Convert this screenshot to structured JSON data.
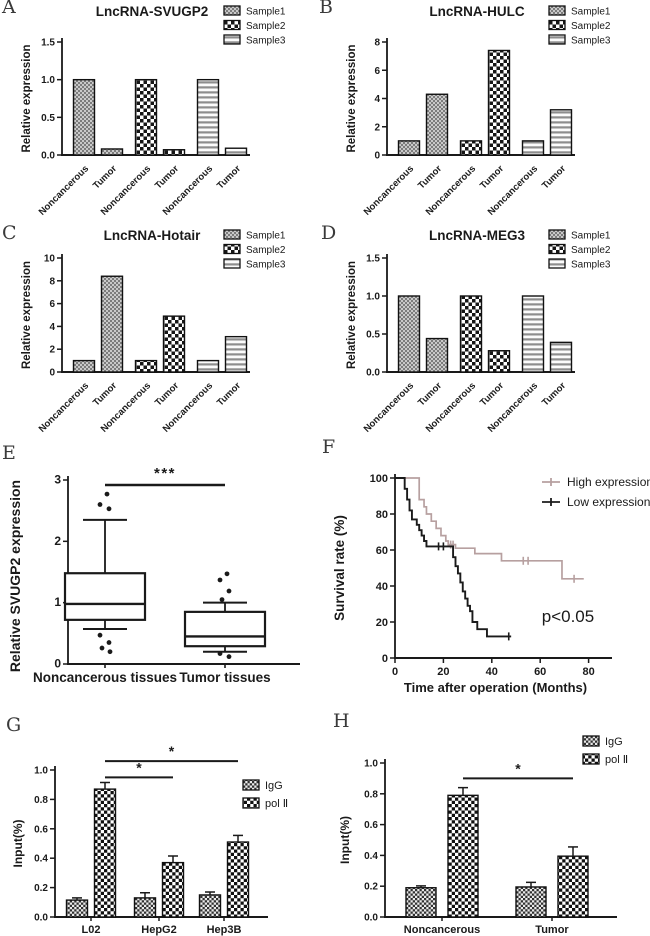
{
  "figure": {
    "background": "#ffffff",
    "text_color": "#1a1a1a"
  },
  "chart_data": [
    {
      "panel": "A",
      "type": "bar",
      "title": "LncRNA-SVUGP2",
      "ylabel": "Relative expression",
      "ymax": 1.5,
      "yticks": [
        0,
        0.5,
        1.0,
        1.5
      ],
      "tick_decimals": 1,
      "pair_labels": [
        "Noncancerous",
        "Tumor"
      ],
      "series": [
        {
          "name": "Sample1",
          "pattern": "sample1",
          "values": [
            1.0,
            0.08
          ]
        },
        {
          "name": "Sample2",
          "pattern": "sample2",
          "values": [
            1.0,
            0.07
          ]
        },
        {
          "name": "Sample3",
          "pattern": "sample3",
          "values": [
            1.0,
            0.09
          ]
        }
      ]
    },
    {
      "panel": "B",
      "type": "bar",
      "title": "LncRNA-HULC",
      "ylabel": "Relative expression",
      "ymax": 8,
      "yticks": [
        0,
        2,
        4,
        6,
        8
      ],
      "tick_decimals": 0,
      "pair_labels": [
        "Noncancerous",
        "Tumor"
      ],
      "series": [
        {
          "name": "Sample1",
          "pattern": "sample1",
          "values": [
            1.0,
            4.3
          ]
        },
        {
          "name": "Sample2",
          "pattern": "sample2",
          "values": [
            1.0,
            7.4
          ]
        },
        {
          "name": "Sample3",
          "pattern": "sample3",
          "values": [
            1.0,
            3.2
          ]
        }
      ]
    },
    {
      "panel": "C",
      "type": "bar",
      "title": "LncRNA-Hotair",
      "ylabel": "Relative expression",
      "ymax": 10,
      "yticks": [
        0,
        2,
        4,
        6,
        8,
        10
      ],
      "tick_decimals": 0,
      "pair_labels": [
        "Noncancerous",
        "Tumor"
      ],
      "series": [
        {
          "name": "Sample1",
          "pattern": "sample1",
          "values": [
            1.0,
            8.4
          ]
        },
        {
          "name": "Sample2",
          "pattern": "sample2",
          "values": [
            1.0,
            4.9
          ]
        },
        {
          "name": "Sample3",
          "pattern": "sample3",
          "values": [
            1.0,
            3.1
          ]
        }
      ]
    },
    {
      "panel": "D",
      "type": "bar",
      "title": "LncRNA-MEG3",
      "ylabel": "Relative expression",
      "ymax": 1.5,
      "yticks": [
        0,
        0.5,
        1.0,
        1.5
      ],
      "tick_decimals": 1,
      "pair_labels": [
        "Noncancerous",
        "Tumor"
      ],
      "series": [
        {
          "name": "Sample1",
          "pattern": "sample1",
          "values": [
            1.0,
            0.44
          ]
        },
        {
          "name": "Sample2",
          "pattern": "sample2",
          "values": [
            1.0,
            0.28
          ]
        },
        {
          "name": "Sample3",
          "pattern": "sample3",
          "values": [
            1.0,
            0.39
          ]
        }
      ]
    },
    {
      "panel": "E",
      "type": "box",
      "ylabel": "Relative SVUGP2 expression",
      "ymax": 3,
      "yticks": [
        0,
        1,
        2,
        3
      ],
      "significance": "***",
      "categories": [
        "Noncancerous tissues",
        "Tumor tissues"
      ],
      "boxes": [
        {
          "q1": 0.72,
          "median": 0.98,
          "q3": 1.48,
          "whisker_low": 0.57,
          "whisker_high": 2.35,
          "outliers_above": [
            2.77,
            2.6,
            2.53
          ],
          "outliers_below": [
            0.47,
            0.35,
            0.26,
            0.2
          ]
        },
        {
          "q1": 0.29,
          "median": 0.45,
          "q3": 0.85,
          "whisker_low": 0.2,
          "whisker_high": 1.0,
          "outliers_above": [
            1.47,
            1.37,
            1.19,
            1.05
          ],
          "outliers_below": [
            0.17,
            0.12
          ]
        }
      ]
    },
    {
      "panel": "F",
      "type": "line",
      "ylabel": "Survival rate (%)",
      "xlabel": "Time after operation (Months)",
      "yticks": [
        0,
        20,
        40,
        60,
        80,
        100
      ],
      "xticks": [
        0,
        20,
        40,
        60,
        80
      ],
      "annotation": "p<0.05",
      "series": [
        {
          "name": "High expression",
          "color": "#b7a0a0",
          "start": 100,
          "end_x": 78,
          "drops": [
            [
              10,
              88
            ],
            [
              12,
              84
            ],
            [
              13,
              80
            ],
            [
              15,
              76
            ],
            [
              17,
              72
            ],
            [
              19,
              68
            ],
            [
              21,
              65
            ],
            [
              22,
              63
            ],
            [
              25,
              61
            ],
            [
              33,
              58
            ],
            [
              44,
              54
            ],
            [
              69,
              44
            ]
          ],
          "censors": [
            [
              23,
              63
            ],
            [
              24,
              63
            ],
            [
              53,
              54
            ],
            [
              55,
              54
            ],
            [
              74,
              44
            ]
          ]
        },
        {
          "name": "Low expression",
          "color": "#1b1b1b",
          "start": 100,
          "end_x": 48,
          "drops": [
            [
              4,
              94
            ],
            [
              5,
              88
            ],
            [
              6,
              82
            ],
            [
              7,
              77
            ],
            [
              9,
              74
            ],
            [
              10,
              71
            ],
            [
              11,
              68
            ],
            [
              12,
              65
            ],
            [
              13,
              62
            ],
            [
              24,
              56
            ],
            [
              25,
              51
            ],
            [
              26,
              47
            ],
            [
              27,
              42
            ],
            [
              28,
              37
            ],
            [
              29,
              33
            ],
            [
              30,
              29
            ],
            [
              31,
              26
            ],
            [
              32,
              20
            ],
            [
              34,
              16
            ],
            [
              38,
              12
            ]
          ],
          "censors": [
            [
              18,
              62
            ],
            [
              20,
              62
            ],
            [
              47,
              12
            ]
          ]
        }
      ]
    },
    {
      "panel": "G",
      "type": "bar",
      "ylabel": "Input(%)",
      "ymax": 1.0,
      "yticks": [
        0,
        0.2,
        0.4,
        0.6,
        0.8,
        1.0
      ],
      "tick_decimals": 1,
      "categories": [
        "L02",
        "HepG2",
        "Hep3B"
      ],
      "series": [
        {
          "name": "IgG",
          "pattern": "igg",
          "values": [
            0.115,
            0.13,
            0.15
          ],
          "errors": [
            0.015,
            0.035,
            0.02
          ]
        },
        {
          "name": "pol Ⅱ",
          "pattern": "pol2",
          "values": [
            0.87,
            0.37,
            0.51
          ],
          "errors": [
            0.045,
            0.045,
            0.045
          ]
        }
      ],
      "significance": [
        {
          "label": "*",
          "series": 1,
          "from_cat": 0,
          "to_cat": 2,
          "level": 1.06
        },
        {
          "label": "*",
          "series": 1,
          "from_cat": 0,
          "to_cat": 1,
          "level": 0.95
        }
      ]
    },
    {
      "panel": "H",
      "type": "bar",
      "ylabel": "Input(%)",
      "ymax": 1.0,
      "yticks": [
        0,
        0.2,
        0.4,
        0.6,
        0.8,
        1.0
      ],
      "tick_decimals": 1,
      "categories": [
        "Noncancerous",
        "Tumor"
      ],
      "series": [
        {
          "name": "IgG",
          "pattern": "igg",
          "values": [
            0.19,
            0.195
          ],
          "errors": [
            0.012,
            0.03
          ]
        },
        {
          "name": "pol Ⅱ",
          "pattern": "pol2",
          "values": [
            0.79,
            0.395
          ],
          "errors": [
            0.05,
            0.06
          ]
        }
      ],
      "significance": [
        {
          "label": "*",
          "series": 1,
          "from_cat": 0,
          "to_cat": 1,
          "level": 0.9
        }
      ]
    }
  ]
}
